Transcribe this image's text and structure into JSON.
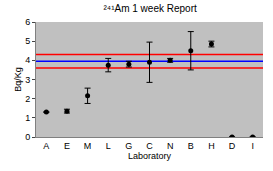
{
  "chart_data": {
    "type": "scatter",
    "title": "²⁴¹Am 1 week Report",
    "x_label": "Laboratory",
    "y_label": "Bq/Kg",
    "categories": [
      "A",
      "E",
      "M",
      "L",
      "G",
      "C",
      "N",
      "B",
      "H",
      "D",
      "I"
    ],
    "values": [
      1.3,
      1.35,
      2.15,
      3.75,
      3.8,
      3.9,
      4.0,
      4.5,
      4.85,
      0,
      0
    ],
    "errors": [
      0,
      0.1,
      0.4,
      0.35,
      0.15,
      1.05,
      0.1,
      1.0,
      0.15,
      0,
      0
    ],
    "color": "#000000",
    "marker": "circle",
    "reference_lines": [
      {
        "value": 4.3,
        "color": "#ff0000"
      },
      {
        "value": 3.95,
        "color": "#0000ff"
      },
      {
        "value": 3.6,
        "color": "#ff0000"
      }
    ],
    "ylim": [
      0,
      6
    ],
    "yticks": [
      0,
      1,
      2,
      3,
      4,
      5,
      6
    ],
    "grid": false
  }
}
